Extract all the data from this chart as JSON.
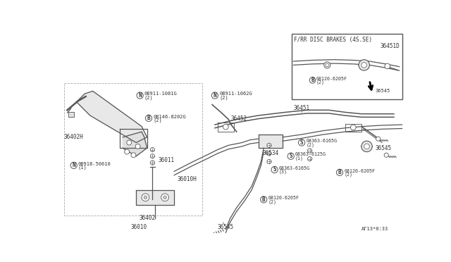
{
  "bg": "#ffffff",
  "lc": "#555555",
  "tc": "#333333",
  "watermark": "AΓ13*0:33",
  "inset_title": "F/RR DISC BRAKES (4S.SE)",
  "inset_part": "36451D"
}
